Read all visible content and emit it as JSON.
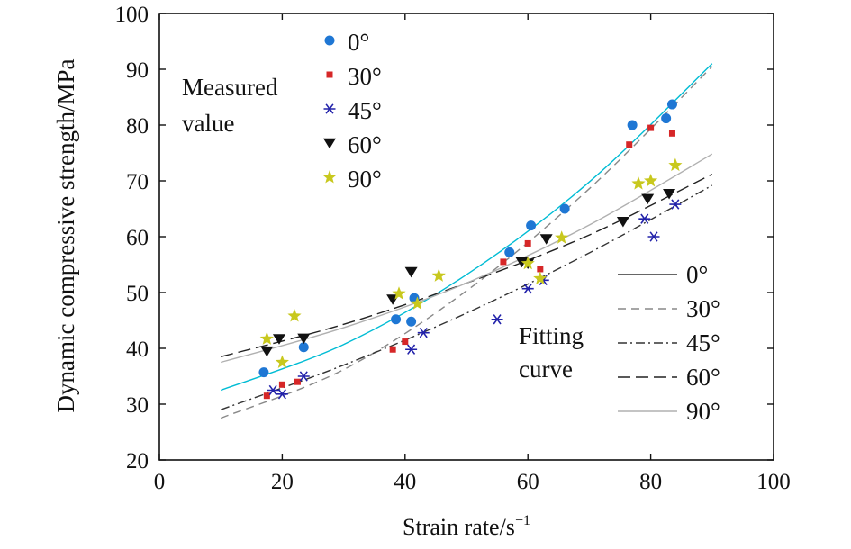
{
  "chart_data": {
    "type": "scatter",
    "xlabel": "Strain rate/s",
    "xlabel_sup": "−1",
    "ylabel": "Dynamic compressive strength/MPa",
    "xlim": [
      0,
      100
    ],
    "ylim": [
      20,
      100
    ],
    "xticks": [
      0,
      20,
      40,
      60,
      80,
      100
    ],
    "yticks": [
      20,
      30,
      40,
      50,
      60,
      70,
      80,
      90,
      100
    ],
    "grid": false,
    "legend_measured": {
      "title_line1": "Measured",
      "title_line2": "value",
      "placement": "top-left",
      "entries": [
        "0°",
        "30°",
        "45°",
        "60°",
        "90°"
      ]
    },
    "legend_fitting": {
      "title_line1": "Fitting",
      "title_line2": "curve",
      "placement": "bottom-right",
      "entries": [
        "0°",
        "30°",
        "45°",
        "60°",
        "90°"
      ]
    },
    "series": [
      {
        "name": "0°",
        "color": "#1f77d4",
        "marker": "circle",
        "line": "solid",
        "line_color": "#00bcd4",
        "points": [
          [
            17,
            35.7
          ],
          [
            23.5,
            40.2
          ],
          [
            38.5,
            45.2
          ],
          [
            41,
            44.8
          ],
          [
            41.5,
            49
          ],
          [
            57,
            57.2
          ],
          [
            60.5,
            62
          ],
          [
            66,
            65
          ],
          [
            77,
            80
          ],
          [
            82.5,
            81.2
          ],
          [
            83.5,
            83.7
          ]
        ],
        "fit": [
          [
            10,
            32.5
          ],
          [
            30,
            40.7
          ],
          [
            50,
            53.2
          ],
          [
            70,
            69.8
          ],
          [
            90,
            91
          ]
        ]
      },
      {
        "name": "30°",
        "color": "#d62728",
        "marker": "square",
        "line": "dashed",
        "line_color": "#888888",
        "points": [
          [
            17.5,
            31.5
          ],
          [
            20,
            33.5
          ],
          [
            22.5,
            34
          ],
          [
            38,
            39.8
          ],
          [
            40,
            41.2
          ],
          [
            56,
            55.5
          ],
          [
            60,
            58.8
          ],
          [
            62,
            54.2
          ],
          [
            76.5,
            76.5
          ],
          [
            80,
            79.5
          ],
          [
            83.5,
            78.5
          ]
        ],
        "fit": [
          [
            10,
            27.5
          ],
          [
            30,
            36.2
          ],
          [
            50,
            50.3
          ],
          [
            70,
            68.6
          ],
          [
            90,
            90.5
          ]
        ]
      },
      {
        "name": "45°",
        "color": "#2222aa",
        "marker": "asterisk",
        "line": "dashdot",
        "line_color": "#333333",
        "points": [
          [
            18.5,
            32.5
          ],
          [
            20,
            31.8
          ],
          [
            23.5,
            35
          ],
          [
            41,
            39.8
          ],
          [
            43,
            42.8
          ],
          [
            55,
            45.2
          ],
          [
            60,
            50.7
          ],
          [
            62.5,
            52.2
          ],
          [
            79,
            63.2
          ],
          [
            80.5,
            60
          ],
          [
            84,
            65.8
          ]
        ],
        "fit": [
          [
            10,
            29
          ],
          [
            30,
            37
          ],
          [
            50,
            46.3
          ],
          [
            70,
            57.1
          ],
          [
            90,
            69.2
          ]
        ]
      },
      {
        "name": "60°",
        "color": "#111111",
        "marker": "triangle-down",
        "line": "longdash",
        "line_color": "#222222",
        "points": [
          [
            17.5,
            39.5
          ],
          [
            19.5,
            41.7
          ],
          [
            23.5,
            41.8
          ],
          [
            38,
            48.8
          ],
          [
            41,
            53.7
          ],
          [
            59,
            55.5
          ],
          [
            60,
            55.2
          ],
          [
            63,
            59.6
          ],
          [
            75.5,
            62.7
          ],
          [
            79.5,
            66.8
          ],
          [
            83,
            67.7
          ]
        ],
        "fit": [
          [
            10,
            38.5
          ],
          [
            30,
            44.3
          ],
          [
            50,
            51.7
          ],
          [
            70,
            60.3
          ],
          [
            90,
            71.2
          ]
        ]
      },
      {
        "name": "90°",
        "color": "#c8c81e",
        "marker": "star",
        "line": "solid",
        "line_color": "#b0b0b0",
        "points": [
          [
            17.5,
            41.7
          ],
          [
            20,
            37.5
          ],
          [
            22,
            45.8
          ],
          [
            39,
            49.8
          ],
          [
            42,
            48
          ],
          [
            45.5,
            53
          ],
          [
            60,
            55.2
          ],
          [
            62,
            52.5
          ],
          [
            65.5,
            59.8
          ],
          [
            78,
            69.5
          ],
          [
            80,
            70
          ],
          [
            84,
            72.8
          ]
        ],
        "fit": [
          [
            10,
            37.5
          ],
          [
            30,
            43.7
          ],
          [
            50,
            51.7
          ],
          [
            70,
            62.1
          ],
          [
            90,
            74.8
          ]
        ]
      }
    ]
  }
}
